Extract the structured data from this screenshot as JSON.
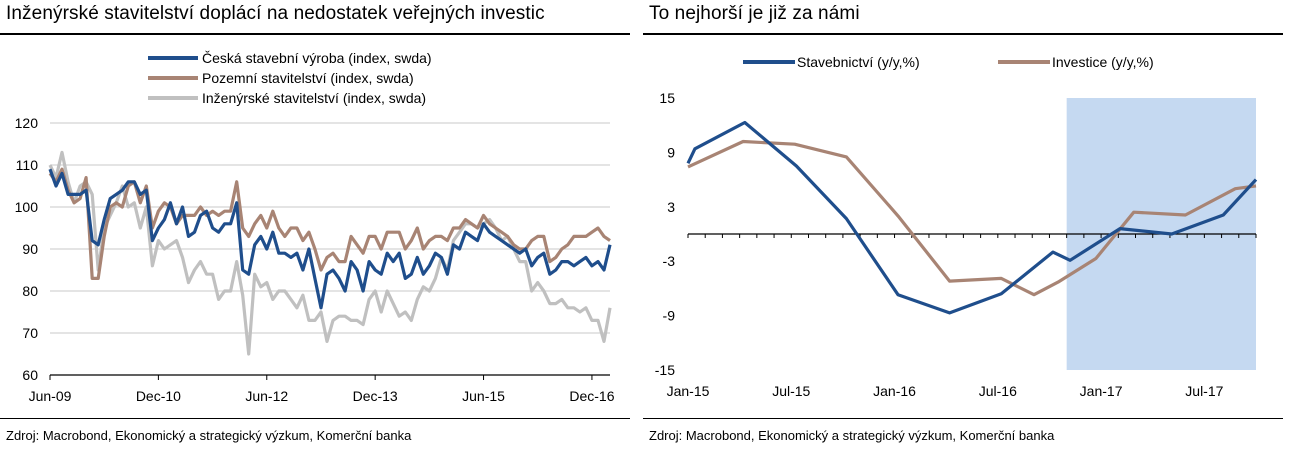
{
  "left_panel": {
    "title": "Inženýrské stavitelství doplácí na nedostatek veřejných investic",
    "source": "Zdroj: Macrobond, Ekonomický a strategický výzkum, Komerční banka"
  },
  "right_panel": {
    "title": "To nejhorší je již za námi",
    "source": "Zdroj: Macrobond, Ekonomický a strategický výzkum, Komerční banka"
  },
  "chart_data": [
    {
      "type": "line",
      "title": "Inženýrské stavitelství doplácí na nedostatek veřejných investic",
      "xlabel": "",
      "ylabel": "",
      "ylim": [
        60,
        120
      ],
      "yticks": [
        60,
        70,
        80,
        90,
        100,
        110,
        120
      ],
      "xlim": [
        0,
        93
      ],
      "xticks": [
        {
          "label": "Jun-09",
          "pos": 0
        },
        {
          "label": "Dec-10",
          "pos": 18
        },
        {
          "label": "Jun-12",
          "pos": 36
        },
        {
          "label": "Dec-13",
          "pos": 54
        },
        {
          "label": "Jun-15",
          "pos": 72
        },
        {
          "label": "Dec-16",
          "pos": 90
        }
      ],
      "grid": "horizontal",
      "legend": "top-center",
      "series": [
        {
          "name": "Česká stavební výroba (index, swda)",
          "color": "#1f4e8c",
          "values": [
            109,
            105,
            108,
            103,
            103,
            103,
            104,
            92,
            91,
            97,
            102,
            103,
            104,
            106,
            106,
            103,
            104,
            92,
            95,
            97,
            101,
            96,
            100,
            93,
            94,
            98,
            99,
            95,
            94,
            96,
            96,
            101,
            85,
            84,
            91,
            93,
            90,
            94,
            89,
            89,
            88,
            89,
            85,
            90,
            83,
            76,
            84,
            85,
            83,
            80,
            87,
            85,
            80,
            87,
            85,
            84,
            89,
            87,
            89,
            83,
            84,
            88,
            84,
            86,
            89,
            88,
            84,
            91,
            90,
            94,
            93,
            92,
            96,
            94,
            93,
            92,
            91,
            90,
            89,
            90,
            86,
            88,
            89,
            84,
            85,
            87,
            87,
            86,
            87,
            88,
            86,
            87,
            85,
            91
          ]
        },
        {
          "name": "Pozemní stavitelství (index, swda)",
          "color": "#a88474",
          "values": [
            108,
            106,
            109,
            104,
            101,
            102,
            107,
            83,
            83,
            93,
            100,
            101,
            100,
            105,
            106,
            101,
            105,
            95,
            99,
            101,
            100,
            96,
            98,
            98,
            98,
            100,
            98,
            99,
            98,
            99,
            99,
            106,
            95,
            93,
            96,
            98,
            95,
            99,
            95,
            93,
            95,
            95,
            92,
            94,
            90,
            85,
            88,
            89,
            87,
            87,
            93,
            91,
            89,
            93,
            93,
            90,
            94,
            94,
            94,
            90,
            92,
            95,
            90,
            92,
            93,
            93,
            92,
            95,
            95,
            97,
            96,
            95,
            98,
            96,
            95,
            94,
            93,
            91,
            90,
            90,
            92,
            93,
            93,
            87,
            88,
            90,
            91,
            93,
            93,
            93,
            94,
            95,
            93,
            92
          ]
        },
        {
          "name": "Inženýrské stavitelství (index, swda)",
          "color": "#c0c0c0",
          "values": [
            110,
            107,
            113,
            106,
            101,
            105,
            106,
            103,
            85,
            95,
            98,
            101,
            105,
            100,
            101,
            95,
            100,
            86,
            92,
            90,
            91,
            92,
            88,
            82,
            85,
            87,
            84,
            84,
            78,
            80,
            80,
            87,
            79,
            65,
            84,
            81,
            82,
            78,
            80,
            80,
            78,
            76,
            79,
            73,
            73,
            75,
            68,
            73,
            74,
            74,
            73,
            73,
            72,
            78,
            80,
            75,
            80,
            77,
            74,
            75,
            73,
            78,
            81,
            80,
            83,
            88,
            85,
            92,
            94,
            96,
            96,
            95,
            96,
            97,
            95,
            92,
            93,
            90,
            87,
            87,
            80,
            82,
            80,
            77,
            77,
            78,
            76,
            76,
            75,
            76,
            73,
            73,
            68,
            76
          ]
        }
      ]
    },
    {
      "type": "line",
      "title": "To nejhorší je již za námi",
      "xlabel": "",
      "ylabel": "",
      "ylim": [
        -15,
        15
      ],
      "yticks": [
        -15,
        -9,
        -3,
        3,
        9,
        15
      ],
      "xlim": [
        0,
        33
      ],
      "xticks": [
        {
          "label": "Jan-15",
          "pos": 0
        },
        {
          "label": "Jul-15",
          "pos": 6
        },
        {
          "label": "Jan-16",
          "pos": 12
        },
        {
          "label": "Jul-16",
          "pos": 18
        },
        {
          "label": "Jan-17",
          "pos": 24
        },
        {
          "label": "Jul-17",
          "pos": 30
        }
      ],
      "grid": "off",
      "legend": "top",
      "shaded_region": {
        "from": 22,
        "to": 33,
        "color": "#c5d9f1"
      },
      "series": [
        {
          "name": "Stavebnictví (y/y,%)",
          "color": "#1f4e8c",
          "x": [
            0,
            0.4,
            3.3,
            6.3,
            9.2,
            12.2,
            15.2,
            18.2,
            21.2,
            22.2,
            25.1,
            28.1,
            31.1,
            33
          ],
          "y": [
            7.8,
            9.4,
            12.3,
            7.5,
            1.7,
            -6.7,
            -8.7,
            -6.6,
            -2,
            -2.9,
            0.6,
            0,
            2.1,
            6
          ]
        },
        {
          "name": "Investice (y/y,%)",
          "color": "#a88474",
          "x": [
            0,
            3.2,
            6.2,
            9.2,
            12.2,
            15.2,
            18.2,
            20.1,
            21.5,
            23.7,
            25.9,
            28.9,
            31.8,
            33
          ],
          "y": [
            7.4,
            10.2,
            9.9,
            8.5,
            2,
            -5.2,
            -4.9,
            -6.7,
            -5.3,
            -2.7,
            2.4,
            2.1,
            5,
            5.3
          ]
        }
      ]
    }
  ]
}
